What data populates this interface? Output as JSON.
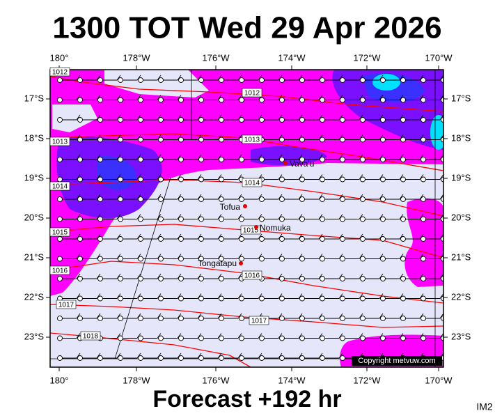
{
  "header": {
    "title": "1300 TOT Wed 29 Apr 2026"
  },
  "map": {
    "x_axis_labels": [
      "180°",
      "178°W",
      "176°W",
      "174°W",
      "172°W",
      "170°W"
    ],
    "y_axis_labels": [
      "17°S",
      "18°S",
      "19°S",
      "20°S",
      "21°S",
      "22°S",
      "23°S"
    ],
    "isobar_labels": [
      "1012",
      "1012",
      "1013",
      "1013",
      "1014",
      "1014",
      "1015",
      "1015",
      "1016",
      "1016",
      "1017",
      "1017",
      "1018"
    ],
    "places": [
      "Vava'u",
      "Tofua",
      "Nomuka",
      "Tongatapu"
    ],
    "copyright": "Copyright metvuw.com"
  },
  "footer": {
    "forecast": "Forecast +192 hr",
    "image_id": "IM2"
  }
}
